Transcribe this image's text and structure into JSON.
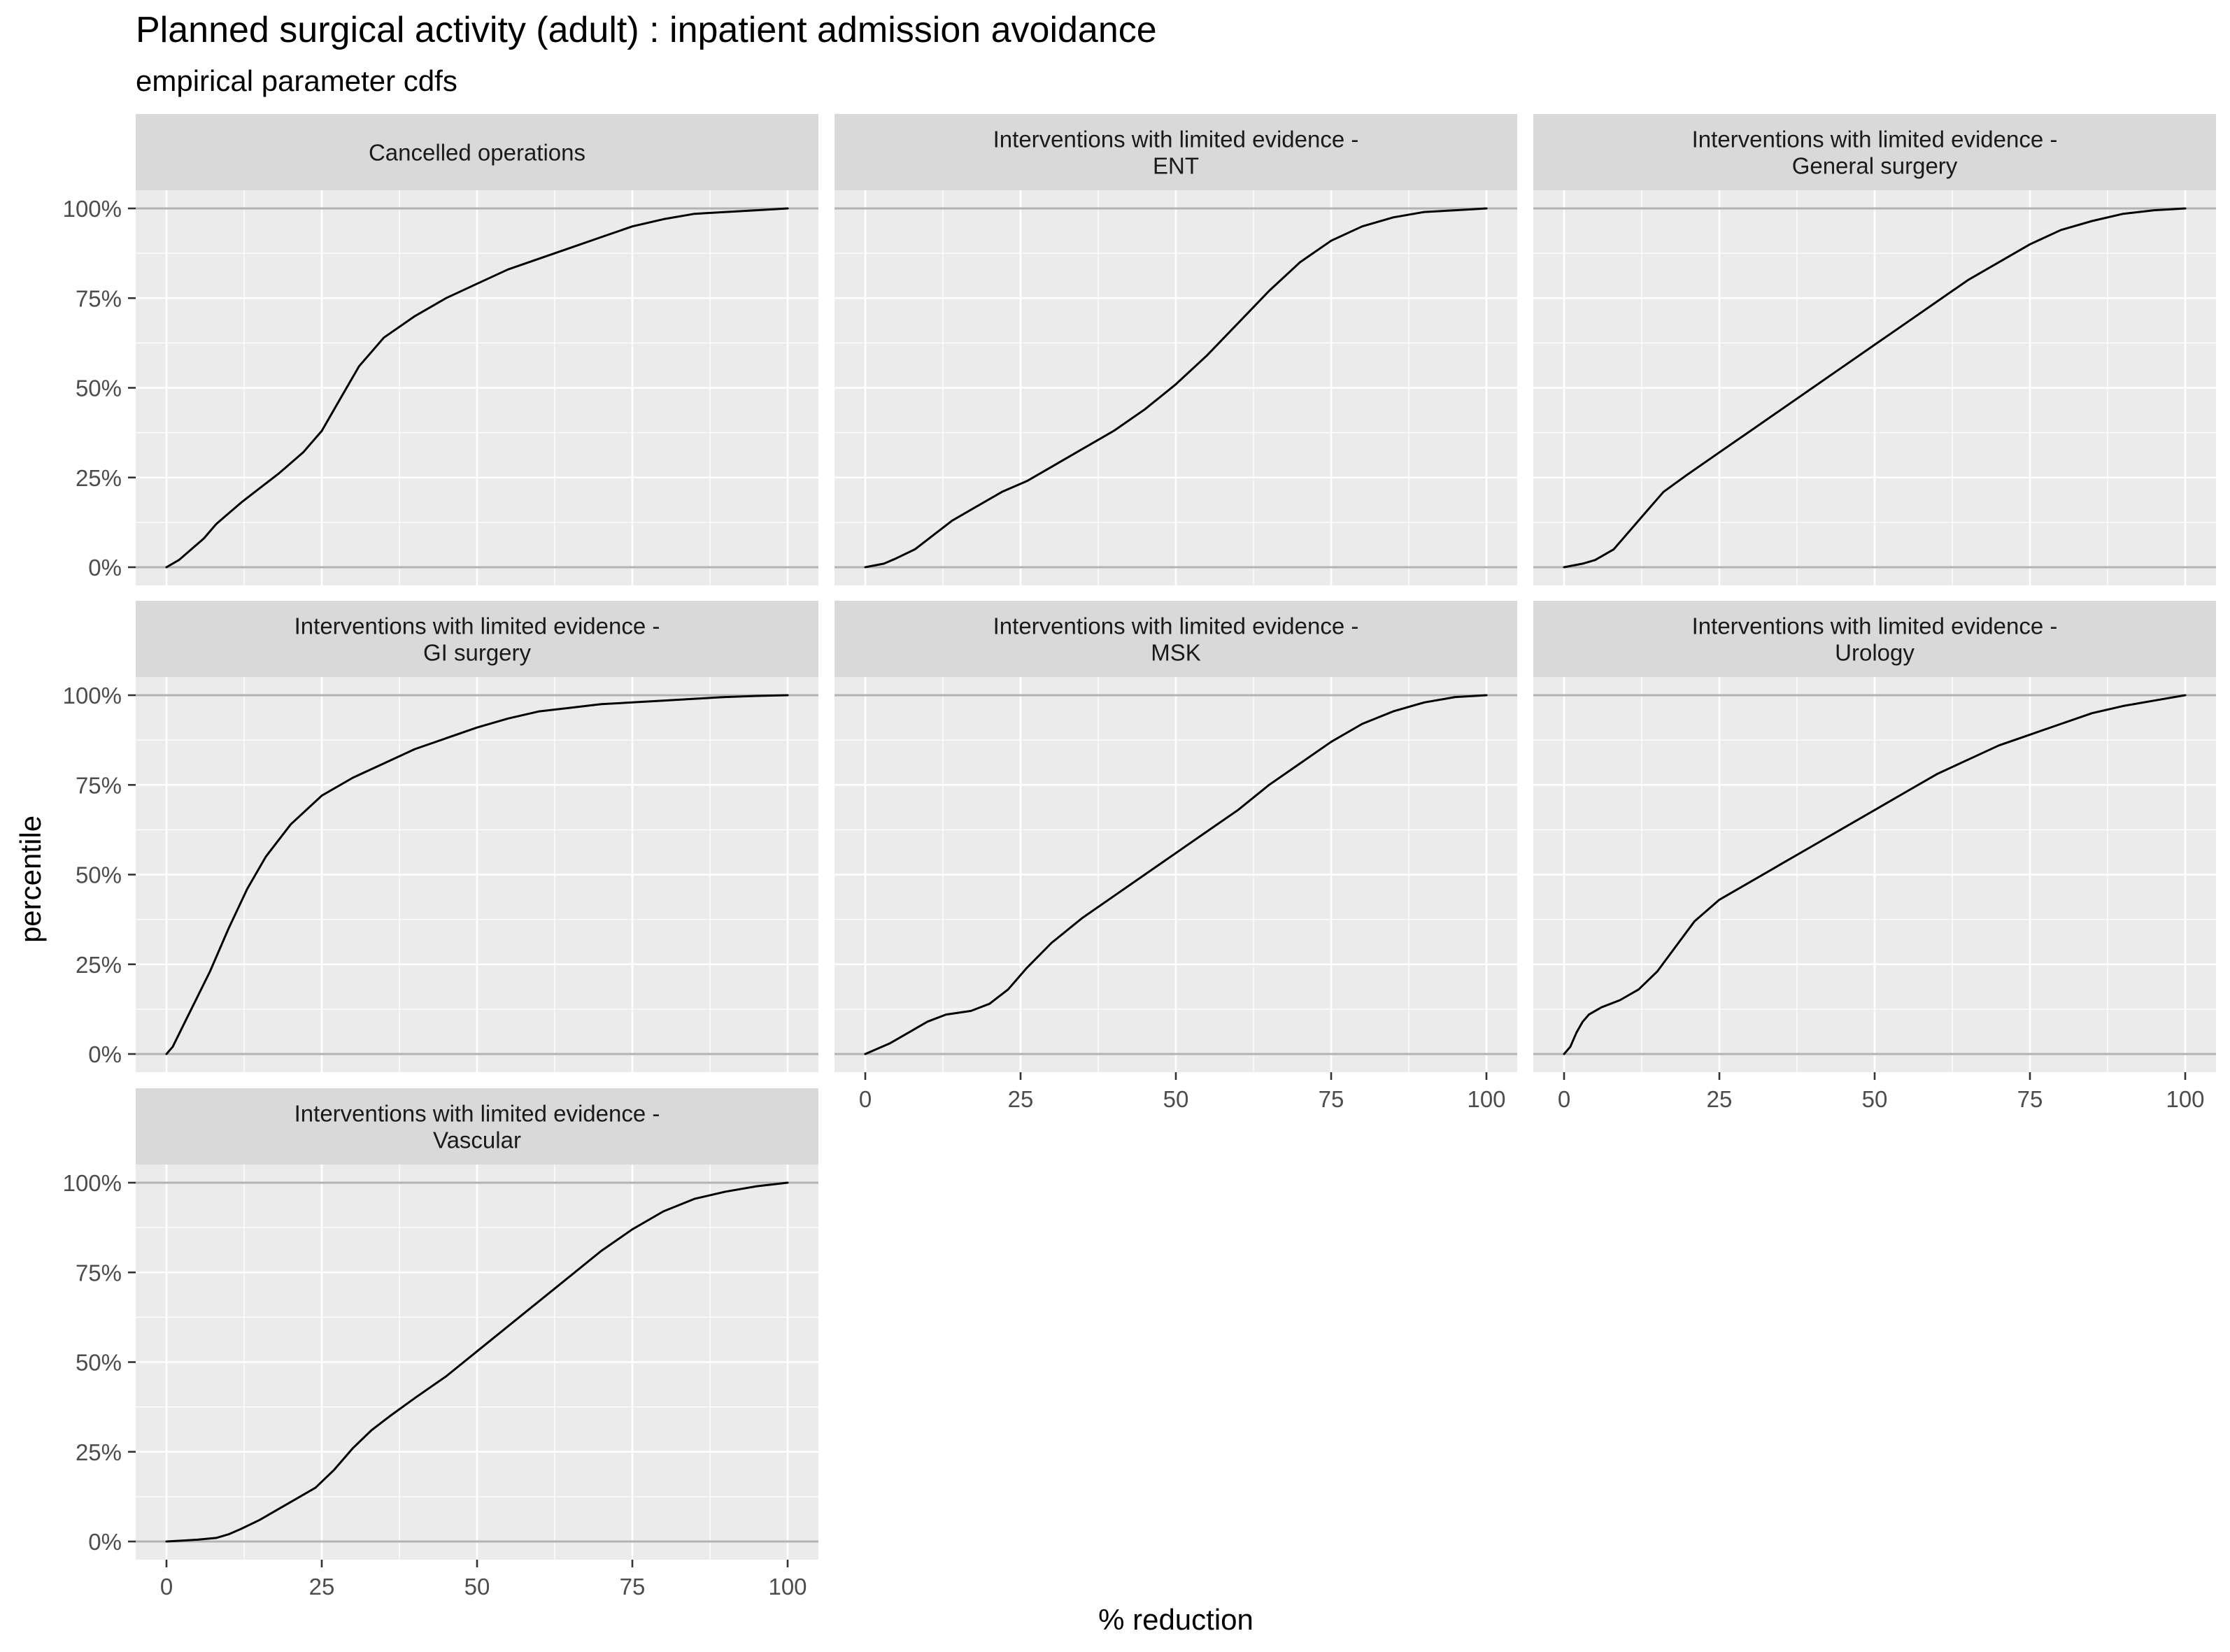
{
  "chart_data": {
    "type": "line",
    "title": "Planned surgical activity (adult) : inpatient admission avoidance",
    "subtitle": "empirical parameter cdfs",
    "xlabel": "% reduction",
    "ylabel": "percentile",
    "xlim": [
      0,
      100
    ],
    "ylim": [
      0,
      1
    ],
    "x_ticks": [
      0,
      25,
      50,
      75,
      100
    ],
    "y_ticks": [
      0,
      0.25,
      0.5,
      0.75,
      1
    ],
    "y_tick_labels": [
      "0%",
      "25%",
      "50%",
      "75%",
      "100%"
    ],
    "grid": true,
    "line_color": "#000000",
    "panel_background": "#ebebeb",
    "strip_background": "#d9d9d9",
    "facets": [
      {
        "label": [
          "Cancelled operations"
        ],
        "x": [
          0,
          2,
          4,
          6,
          8,
          10,
          12,
          15,
          18,
          20,
          22,
          25,
          28,
          31,
          35,
          40,
          45,
          50,
          55,
          60,
          65,
          70,
          75,
          80,
          85,
          90,
          95,
          100
        ],
        "y": [
          0,
          0.02,
          0.05,
          0.08,
          0.12,
          0.15,
          0.18,
          0.22,
          0.26,
          0.29,
          0.32,
          0.38,
          0.47,
          0.56,
          0.64,
          0.7,
          0.75,
          0.79,
          0.83,
          0.86,
          0.89,
          0.92,
          0.95,
          0.97,
          0.985,
          0.99,
          0.995,
          1.0
        ]
      },
      {
        "label": [
          "Interventions with limited evidence -",
          "ENT"
        ],
        "x": [
          0,
          3,
          5,
          8,
          11,
          14,
          18,
          22,
          26,
          30,
          35,
          40,
          45,
          50,
          55,
          60,
          65,
          70,
          75,
          80,
          85,
          90,
          95,
          100
        ],
        "y": [
          0,
          0.01,
          0.025,
          0.05,
          0.09,
          0.13,
          0.17,
          0.21,
          0.24,
          0.28,
          0.33,
          0.38,
          0.44,
          0.51,
          0.59,
          0.68,
          0.77,
          0.85,
          0.91,
          0.95,
          0.975,
          0.99,
          0.995,
          1.0
        ]
      },
      {
        "label": [
          "Interventions with limited evidence -",
          "General surgery"
        ],
        "x": [
          0,
          3,
          5,
          8,
          10,
          13,
          16,
          20,
          25,
          30,
          35,
          40,
          45,
          50,
          55,
          60,
          65,
          70,
          75,
          80,
          85,
          90,
          95,
          100
        ],
        "y": [
          0,
          0.01,
          0.02,
          0.05,
          0.09,
          0.15,
          0.21,
          0.26,
          0.32,
          0.38,
          0.44,
          0.5,
          0.56,
          0.62,
          0.68,
          0.74,
          0.8,
          0.85,
          0.9,
          0.94,
          0.965,
          0.985,
          0.995,
          1.0
        ]
      },
      {
        "label": [
          "Interventions with limited evidence -",
          "GI surgery"
        ],
        "x": [
          0,
          1,
          3,
          5,
          7,
          10,
          13,
          16,
          20,
          25,
          30,
          35,
          40,
          45,
          50,
          55,
          60,
          65,
          70,
          75,
          80,
          85,
          90,
          95,
          100
        ],
        "y": [
          0,
          0.02,
          0.09,
          0.16,
          0.23,
          0.35,
          0.46,
          0.55,
          0.64,
          0.72,
          0.77,
          0.81,
          0.85,
          0.88,
          0.91,
          0.935,
          0.955,
          0.965,
          0.975,
          0.98,
          0.985,
          0.99,
          0.995,
          0.998,
          1.0
        ]
      },
      {
        "label": [
          "Interventions with limited evidence -",
          "MSK"
        ],
        "x": [
          0,
          4,
          7,
          10,
          13,
          17,
          20,
          23,
          26,
          30,
          35,
          40,
          45,
          50,
          55,
          60,
          65,
          70,
          75,
          80,
          85,
          90,
          95,
          100
        ],
        "y": [
          0,
          0.03,
          0.06,
          0.09,
          0.11,
          0.12,
          0.14,
          0.18,
          0.24,
          0.31,
          0.38,
          0.44,
          0.5,
          0.56,
          0.62,
          0.68,
          0.75,
          0.81,
          0.87,
          0.92,
          0.955,
          0.98,
          0.995,
          1.0
        ]
      },
      {
        "label": [
          "Interventions with limited evidence -",
          "Urology"
        ],
        "x": [
          0,
          1,
          2,
          3,
          4,
          6,
          9,
          12,
          15,
          18,
          21,
          25,
          30,
          35,
          40,
          45,
          50,
          55,
          60,
          65,
          70,
          75,
          80,
          85,
          90,
          95,
          100
        ],
        "y": [
          0,
          0.02,
          0.06,
          0.09,
          0.11,
          0.13,
          0.15,
          0.18,
          0.23,
          0.3,
          0.37,
          0.43,
          0.48,
          0.53,
          0.58,
          0.63,
          0.68,
          0.73,
          0.78,
          0.82,
          0.86,
          0.89,
          0.92,
          0.95,
          0.97,
          0.985,
          1.0
        ]
      },
      {
        "label": [
          "Interventions with limited evidence -",
          "Vascular"
        ],
        "x": [
          0,
          3,
          5,
          8,
          10,
          12,
          15,
          18,
          21,
          24,
          27,
          30,
          33,
          36,
          40,
          45,
          50,
          55,
          60,
          65,
          70,
          75,
          80,
          85,
          90,
          95,
          100
        ],
        "y": [
          0,
          0.003,
          0.005,
          0.01,
          0.02,
          0.035,
          0.06,
          0.09,
          0.12,
          0.15,
          0.2,
          0.26,
          0.31,
          0.35,
          0.4,
          0.46,
          0.53,
          0.6,
          0.67,
          0.74,
          0.81,
          0.87,
          0.92,
          0.955,
          0.975,
          0.99,
          1.0
        ]
      }
    ]
  }
}
